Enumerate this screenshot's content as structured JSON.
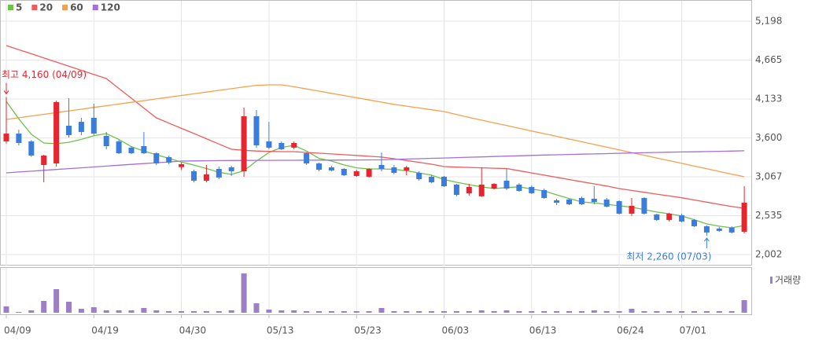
{
  "chart_data": {
    "type": "candlestick",
    "categories": [
      "04/09",
      null,
      null,
      null,
      null,
      null,
      null,
      "04/19",
      null,
      null,
      null,
      null,
      null,
      null,
      "04/30",
      null,
      null,
      null,
      null,
      null,
      null,
      "05/13",
      null,
      null,
      null,
      null,
      null,
      null,
      "05/23",
      null,
      null,
      null,
      null,
      null,
      null,
      "06/03",
      null,
      null,
      null,
      null,
      null,
      null,
      "06/13",
      null,
      null,
      null,
      null,
      null,
      null,
      "06/24",
      null,
      null,
      null,
      null,
      "07/01",
      null,
      null,
      null,
      null,
      null
    ],
    "open": [
      3552,
      3659,
      3552,
      3229,
      3250,
      3767,
      3820,
      3875,
      3627,
      3552,
      3466,
      3487,
      3390,
      3336,
      3200,
      3143,
      3014,
      3175,
      3197,
      3143,
      3896,
      3552,
      3530,
      3466,
      3390,
      3250,
      3197,
      3175,
      3078,
      3068,
      3229,
      3197,
      3154,
      3121,
      3068,
      3068,
      2960,
      2840,
      2800,
      2906,
      3014,
      2960,
      2928,
      2885,
      2745,
      2756,
      2777,
      2766,
      2756,
      2734,
      2562,
      2777,
      2551,
      2476,
      2541,
      2476,
      2390,
      2358,
      2369,
      2315
    ],
    "high": [
      4160,
      3713,
      3570,
      3370,
      4110,
      4143,
      3875,
      4068,
      3681,
      3573,
      3487,
      3681,
      3401,
      3358,
      3260,
      3165,
      3229,
      3207,
      3218,
      4014,
      3982,
      3820,
      3552,
      3552,
      3401,
      3261,
      3218,
      3186,
      3164,
      3186,
      3401,
      3229,
      3218,
      3143,
      3089,
      3078,
      2970,
      2970,
      3197,
      2980,
      3175,
      2980,
      2949,
      2906,
      2766,
      2766,
      2799,
      2938,
      2777,
      2745,
      2777,
      2788,
      2562,
      2573,
      2562,
      2487,
      2401,
      2380,
      2390,
      2938
    ],
    "low": [
      3520,
      3498,
      3340,
      2992,
      3207,
      3605,
      3638,
      3638,
      3444,
      3380,
      3380,
      3380,
      3229,
      3240,
      3160,
      2992,
      2992,
      3035,
      3080,
      3068,
      3466,
      3444,
      3433,
      3444,
      3229,
      3143,
      3143,
      3078,
      3068,
      3057,
      3143,
      3100,
      3089,
      3014,
      2980,
      2927,
      2800,
      2810,
      2790,
      2895,
      2885,
      2863,
      2830,
      2766,
      2680,
      2680,
      2680,
      2691,
      2648,
      2551,
      2530,
      2551,
      2465,
      2455,
      2444,
      2380,
      2260,
      2315,
      2293,
      2293
    ],
    "close": [
      3659,
      3530,
      3358,
      3358,
      4090,
      3638,
      3681,
      3659,
      3487,
      3390,
      3390,
      3390,
      3250,
      3261,
      3240,
      3014,
      3100,
      3057,
      3143,
      3896,
      3498,
      3466,
      3444,
      3530,
      3250,
      3164,
      3154,
      3089,
      3143,
      3175,
      3175,
      3121,
      3197,
      3035,
      2992,
      2938,
      2820,
      2928,
      2960,
      2970,
      2906,
      2874,
      2842,
      2777,
      2712,
      2691,
      2691,
      2723,
      2659,
      2562,
      2669,
      2562,
      2476,
      2562,
      2455,
      2390,
      2304,
      2326,
      2304,
      2713
    ],
    "volume": [
      8,
      1,
      3,
      15,
      30,
      14,
      5,
      7,
      3,
      3,
      3,
      6,
      3,
      2,
      2,
      2,
      2,
      2,
      3,
      50,
      12,
      4,
      3,
      3,
      2,
      2,
      2,
      2,
      2,
      2,
      6,
      2,
      2,
      2,
      2,
      2,
      2,
      2,
      3,
      2,
      3,
      2,
      2,
      2,
      2,
      2,
      2,
      3,
      2,
      2,
      5,
      2,
      2,
      2,
      2,
      2,
      2,
      2,
      2,
      16
    ],
    "volume_label": "거래량",
    "volume_color": "#9b80c8",
    "up_color": "#e8242e",
    "down_color": "#3b7ddd",
    "ma": [
      {
        "name": "5",
        "color": "#6cc24a",
        "values": [
          4100,
          3860,
          3650,
          3530,
          3520,
          3540,
          3580,
          3630,
          3659,
          3580,
          3480,
          3420,
          3369,
          3320,
          3270,
          3229,
          3180,
          3130,
          3100,
          3150,
          3283,
          3400,
          3470,
          3498,
          3420,
          3320,
          3283,
          3230,
          3190,
          3175,
          3175,
          3170,
          3150,
          3120,
          3090,
          3030,
          2992,
          2960,
          2930,
          2906,
          2920,
          2930,
          2900,
          2874,
          2820,
          2770,
          2723,
          2710,
          2690,
          2670,
          2650,
          2620,
          2584,
          2560,
          2530,
          2480,
          2422,
          2390,
          2369,
          2400
        ]
      },
      {
        "name": "20",
        "color": "#ee5b5b",
        "values": [
          4864,
          4808,
          4752,
          4695,
          4638,
          4581,
          4525,
          4468,
          4412,
          4277,
          4143,
          4008,
          3874,
          3802,
          3730,
          3660,
          3588,
          3516,
          3444,
          3430,
          3420,
          3415,
          3412,
          3412,
          3400,
          3390,
          3380,
          3370,
          3360,
          3348,
          3337,
          3315,
          3290,
          3265,
          3240,
          3207,
          3200,
          3195,
          3190,
          3185,
          3180,
          3150,
          3120,
          3090,
          3060,
          3030,
          3000,
          2970,
          2940,
          2906,
          2880,
          2855,
          2830,
          2805,
          2780,
          2750,
          2720,
          2690,
          2660,
          2637
        ]
      },
      {
        "name": "60",
        "color": "#f7a04a",
        "values": [
          3853,
          3876,
          3900,
          3923,
          3947,
          3970,
          3993,
          4017,
          4040,
          4064,
          4087,
          4110,
          4134,
          4157,
          4181,
          4204,
          4227,
          4251,
          4274,
          4298,
          4320,
          4326,
          4326,
          4300,
          4270,
          4240,
          4210,
          4180,
          4150,
          4120,
          4090,
          4060,
          4035,
          4010,
          3985,
          3961,
          3920,
          3880,
          3843,
          3806,
          3769,
          3732,
          3695,
          3658,
          3621,
          3584,
          3547,
          3510,
          3473,
          3436,
          3399,
          3362,
          3325,
          3288,
          3251,
          3214,
          3177,
          3140,
          3103,
          3068
        ]
      },
      {
        "name": "120",
        "color": "#a56fd6",
        "values": [
          3121,
          3133,
          3144,
          3156,
          3167,
          3179,
          3190,
          3202,
          3214,
          3225,
          3237,
          3248,
          3260,
          3271,
          3283,
          3285,
          3287,
          3289,
          3290,
          3291,
          3292,
          3292,
          3293,
          3293,
          3294,
          3295,
          3296,
          3297,
          3298,
          3299,
          3300,
          3305,
          3310,
          3315,
          3320,
          3325,
          3330,
          3335,
          3340,
          3345,
          3350,
          3355,
          3360,
          3365,
          3369,
          3373,
          3377,
          3381,
          3385,
          3389,
          3393,
          3397,
          3401,
          3404,
          3407,
          3410,
          3413,
          3416,
          3419,
          3423
        ]
      }
    ],
    "annotations": [
      {
        "text": "최고 4,160 (04/09)",
        "color": "#e8242e"
      },
      {
        "text": "최저 2,260 (07/03)",
        "color": "#3b7ddd"
      }
    ],
    "ylim": [
      2002,
      5198
    ],
    "yticks": [
      {
        "value": 2002,
        "label": "2,002"
      },
      {
        "value": 2535,
        "label": "2,535"
      },
      {
        "value": 3067,
        "label": "3,067"
      },
      {
        "value": 3600,
        "label": "3,600"
      },
      {
        "value": 4133,
        "label": "4,133"
      },
      {
        "value": 4665,
        "label": "4,665"
      },
      {
        "value": 5198,
        "label": "5,198"
      }
    ],
    "grid": true
  }
}
